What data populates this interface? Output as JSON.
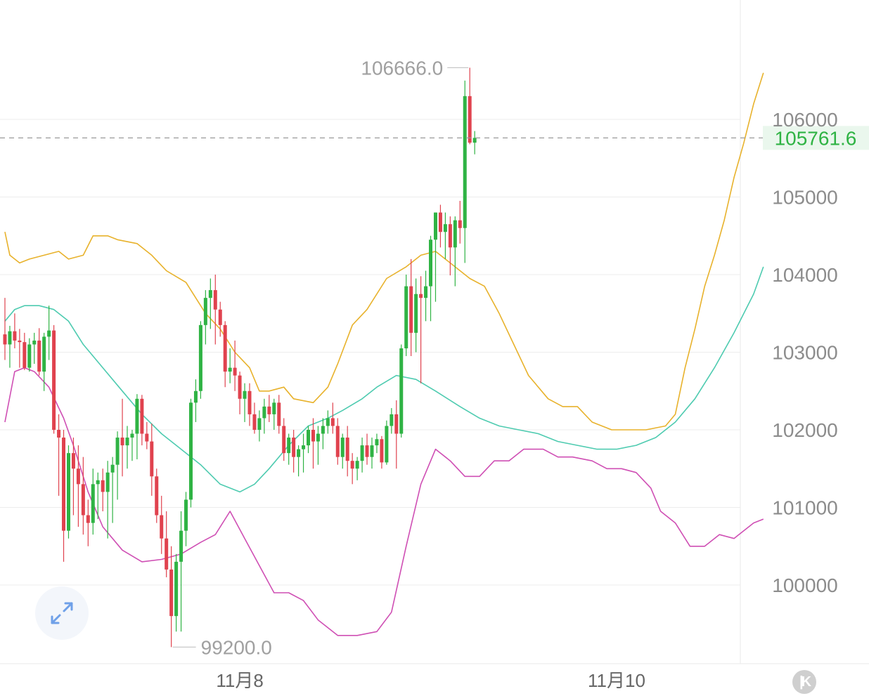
{
  "chart_data": {
    "type": "candlestick",
    "y_ticks": [
      "106000",
      "105000",
      "104000",
      "103000",
      "102000",
      "101000",
      "100000"
    ],
    "x_ticks": [
      {
        "label": "11月8",
        "index": 48
      },
      {
        "label": "11月10",
        "index": 125
      }
    ],
    "ylim": [
      98700,
      107500
    ],
    "current_price": "105761.6",
    "high_label": "106666.0",
    "low_label": "99200.0",
    "colors": {
      "up": "#2fb344",
      "down": "#e0424e",
      "upper_band": "#e8b22c",
      "middle_band": "#4ecbb0",
      "lower_band": "#cf4fb4",
      "grid": "#ececec",
      "price_line": "#999999"
    },
    "candles": [
      [
        103230,
        103700,
        102900,
        103100
      ],
      [
        103100,
        103340,
        102800,
        103270
      ],
      [
        103270,
        103500,
        103050,
        103150
      ],
      [
        103150,
        103300,
        102800,
        103130
      ],
      [
        103130,
        103250,
        102770,
        102800
      ],
      [
        102800,
        103180,
        102750,
        103100
      ],
      [
        103100,
        103250,
        102850,
        103150
      ],
      [
        103150,
        103310,
        102700,
        102750
      ],
      [
        102750,
        103250,
        102500,
        103200
      ],
      [
        103200,
        103600,
        102900,
        103280
      ],
      [
        103280,
        103350,
        101950,
        102000
      ],
      [
        102000,
        102200,
        101150,
        101900
      ],
      [
        101900,
        102000,
        100300,
        100700
      ],
      [
        100700,
        101800,
        100600,
        101700
      ],
      [
        101700,
        101900,
        100900,
        101500
      ],
      [
        101500,
        101800,
        100750,
        101300
      ],
      [
        101300,
        101650,
        100650,
        100900
      ],
      [
        100900,
        101100,
        100500,
        100800
      ],
      [
        100800,
        101500,
        100650,
        101300
      ],
      [
        101300,
        101450,
        100850,
        101350
      ],
      [
        101350,
        101500,
        100950,
        101200
      ],
      [
        101200,
        101600,
        100600,
        101450
      ],
      [
        101450,
        101650,
        100800,
        101550
      ],
      [
        101550,
        101980,
        101100,
        101900
      ],
      [
        101900,
        102400,
        101400,
        101800
      ],
      [
        101800,
        102050,
        101500,
        101900
      ],
      [
        101900,
        102000,
        101600,
        101950
      ],
      [
        101950,
        102460,
        101620,
        102400
      ],
      [
        102400,
        102450,
        101800,
        101950
      ],
      [
        101950,
        102100,
        101750,
        101850
      ],
      [
        101850,
        102080,
        101150,
        101400
      ],
      [
        101400,
        101500,
        100800,
        100900
      ],
      [
        100900,
        101150,
        100400,
        100600
      ],
      [
        100600,
        100950,
        100100,
        100200
      ],
      [
        100200,
        100500,
        99200,
        99600
      ],
      [
        99600,
        100400,
        99400,
        100300
      ],
      [
        100300,
        100950,
        99400,
        100700
      ],
      [
        100700,
        101200,
        100500,
        101100
      ],
      [
        101100,
        102400,
        101000,
        102350
      ],
      [
        102350,
        102650,
        102100,
        102500
      ],
      [
        102500,
        103400,
        102400,
        103350
      ],
      [
        103350,
        103800,
        103100,
        103700
      ],
      [
        103700,
        103950,
        103300,
        103800
      ],
      [
        103800,
        104000,
        103100,
        103550
      ],
      [
        103550,
        103650,
        103200,
        103350
      ],
      [
        103350,
        103400,
        102550,
        102750
      ],
      [
        102750,
        103050,
        102600,
        102800
      ],
      [
        102800,
        103150,
        102500,
        102700
      ],
      [
        102700,
        102750,
        102200,
        102400
      ],
      [
        102400,
        102600,
        102100,
        102500
      ],
      [
        102500,
        102600,
        102050,
        102200
      ],
      [
        102200,
        102350,
        101950,
        102000
      ],
      [
        102000,
        102250,
        101850,
        102150
      ],
      [
        102150,
        102400,
        101950,
        102300
      ],
      [
        102300,
        102450,
        102100,
        102200
      ],
      [
        102200,
        102400,
        102000,
        102350
      ],
      [
        102350,
        102450,
        101950,
        102050
      ],
      [
        102050,
        102150,
        101600,
        101700
      ],
      [
        101700,
        101950,
        101550,
        101900
      ],
      [
        101900,
        102000,
        101450,
        101650
      ],
      [
        101650,
        101800,
        101400,
        101750
      ],
      [
        101750,
        101950,
        101450,
        101800
      ],
      [
        101800,
        102050,
        101700,
        102000
      ],
      [
        102000,
        102150,
        101500,
        101850
      ],
      [
        101850,
        102050,
        101550,
        101950
      ],
      [
        101950,
        102150,
        101750,
        102050
      ],
      [
        102050,
        102250,
        101950,
        102150
      ],
      [
        102150,
        102350,
        101950,
        102050
      ],
      [
        102050,
        102150,
        101550,
        101650
      ],
      [
        101650,
        101950,
        101500,
        101900
      ],
      [
        101900,
        102050,
        101400,
        101600
      ],
      [
        101600,
        101700,
        101300,
        101500
      ],
      [
        101500,
        101650,
        101350,
        101600
      ],
      [
        101600,
        101900,
        101450,
        101800
      ],
      [
        101800,
        101950,
        101550,
        101650
      ],
      [
        101650,
        101900,
        101500,
        101800
      ],
      [
        101800,
        101950,
        101700,
        101880
      ],
      [
        101880,
        101920,
        101500,
        101580
      ],
      [
        101580,
        102120,
        101550,
        102050
      ],
      [
        102050,
        102280,
        101950,
        102200
      ],
      [
        102200,
        102380,
        101500,
        101950
      ],
      [
        101950,
        103100,
        101900,
        103050
      ],
      [
        103050,
        104000,
        102950,
        103850
      ],
      [
        103850,
        104200,
        102950,
        103250
      ],
      [
        103250,
        103950,
        103000,
        103750
      ],
      [
        103750,
        103980,
        102600,
        103700
      ],
      [
        103700,
        104050,
        103400,
        103850
      ],
      [
        103850,
        104500,
        103400,
        104450
      ],
      [
        104450,
        104800,
        103650,
        104800
      ],
      [
        104800,
        104900,
        104350,
        104550
      ],
      [
        104550,
        104800,
        104200,
        104650
      ],
      [
        104650,
        104750,
        103990,
        104350
      ],
      [
        104350,
        104750,
        103850,
        104700
      ],
      [
        104700,
        104950,
        104400,
        104600
      ],
      [
        104600,
        106500,
        104150,
        106300
      ],
      [
        106300,
        106666,
        105680,
        105700
      ],
      [
        105700,
        105850,
        105550,
        105761.6
      ]
    ],
    "upper_band": [
      [
        0,
        104550
      ],
      [
        1,
        104250
      ],
      [
        3,
        104150
      ],
      [
        5,
        104200
      ],
      [
        8,
        104250
      ],
      [
        11,
        104300
      ],
      [
        13,
        104200
      ],
      [
        16,
        104250
      ],
      [
        18,
        104500
      ],
      [
        21,
        104500
      ],
      [
        23,
        104450
      ],
      [
        27,
        104400
      ],
      [
        30,
        104250
      ],
      [
        33,
        104050
      ],
      [
        37,
        103900
      ],
      [
        41,
        103500
      ],
      [
        44,
        103300
      ],
      [
        47,
        103000
      ],
      [
        50,
        102800
      ],
      [
        52,
        102500
      ],
      [
        54,
        102500
      ],
      [
        57,
        102550
      ],
      [
        59,
        102400
      ],
      [
        63,
        102350
      ],
      [
        66,
        102550
      ],
      [
        68,
        102850
      ],
      [
        71,
        103350
      ],
      [
        74,
        103550
      ],
      [
        78,
        103950
      ],
      [
        82,
        104100
      ],
      [
        85,
        104250
      ],
      [
        88,
        104300
      ],
      [
        92,
        104100
      ],
      [
        95,
        103950
      ],
      [
        98,
        103850
      ],
      [
        101,
        103500
      ],
      [
        104,
        103100
      ],
      [
        107,
        102700
      ],
      [
        111,
        102400
      ],
      [
        114,
        102300
      ],
      [
        117,
        102300
      ],
      [
        120,
        102100
      ],
      [
        124,
        102000
      ],
      [
        128,
        102000
      ],
      [
        131,
        102000
      ],
      [
        135,
        102050
      ],
      [
        137,
        102200
      ],
      [
        139,
        102800
      ],
      [
        141,
        103300
      ],
      [
        143,
        103850
      ],
      [
        145,
        104250
      ],
      [
        147,
        104700
      ],
      [
        149,
        105250
      ],
      [
        151,
        105700
      ],
      [
        153,
        106200
      ],
      [
        155,
        106600
      ]
    ],
    "middle_band": [
      [
        0,
        103400
      ],
      [
        2,
        103550
      ],
      [
        4,
        103600
      ],
      [
        7,
        103600
      ],
      [
        10,
        103550
      ],
      [
        13,
        103400
      ],
      [
        16,
        103100
      ],
      [
        20,
        102800
      ],
      [
        24,
        102500
      ],
      [
        28,
        102200
      ],
      [
        32,
        101950
      ],
      [
        36,
        101750
      ],
      [
        40,
        101550
      ],
      [
        44,
        101300
      ],
      [
        48,
        101200
      ],
      [
        51,
        101300
      ],
      [
        54,
        101500
      ],
      [
        58,
        101800
      ],
      [
        62,
        102050
      ],
      [
        66,
        102150
      ],
      [
        69,
        102250
      ],
      [
        73,
        102400
      ],
      [
        76,
        102550
      ],
      [
        80,
        102700
      ],
      [
        84,
        102650
      ],
      [
        88,
        102500
      ],
      [
        93,
        102300
      ],
      [
        97,
        102150
      ],
      [
        101,
        102050
      ],
      [
        105,
        102000
      ],
      [
        109,
        101950
      ],
      [
        113,
        101850
      ],
      [
        117,
        101800
      ],
      [
        121,
        101750
      ],
      [
        125,
        101750
      ],
      [
        129,
        101800
      ],
      [
        133,
        101900
      ],
      [
        137,
        102100
      ],
      [
        141,
        102400
      ],
      [
        145,
        102800
      ],
      [
        149,
        103250
      ],
      [
        153,
        103750
      ],
      [
        155,
        104100
      ]
    ],
    "lower_band": [
      [
        0,
        102100
      ],
      [
        2,
        102750
      ],
      [
        4,
        102800
      ],
      [
        6,
        102750
      ],
      [
        9,
        102550
      ],
      [
        12,
        102150
      ],
      [
        14,
        101800
      ],
      [
        17,
        101200
      ],
      [
        20,
        100750
      ],
      [
        24,
        100450
      ],
      [
        28,
        100300
      ],
      [
        32,
        100330
      ],
      [
        36,
        100400
      ],
      [
        40,
        100550
      ],
      [
        43,
        100650
      ],
      [
        46,
        100950
      ],
      [
        49,
        100600
      ],
      [
        52,
        100250
      ],
      [
        55,
        99900
      ],
      [
        58,
        99900
      ],
      [
        61,
        99800
      ],
      [
        64,
        99550
      ],
      [
        68,
        99350
      ],
      [
        72,
        99350
      ],
      [
        76,
        99400
      ],
      [
        79,
        99650
      ],
      [
        82,
        100500
      ],
      [
        85,
        101300
      ],
      [
        88,
        101750
      ],
      [
        91,
        101600
      ],
      [
        94,
        101400
      ],
      [
        97,
        101400
      ],
      [
        100,
        101600
      ],
      [
        103,
        101600
      ],
      [
        106,
        101750
      ],
      [
        110,
        101750
      ],
      [
        113,
        101650
      ],
      [
        116,
        101650
      ],
      [
        120,
        101600
      ],
      [
        123,
        101500
      ],
      [
        126,
        101500
      ],
      [
        129,
        101450
      ],
      [
        132,
        101250
      ],
      [
        134,
        100950
      ],
      [
        137,
        100800
      ],
      [
        140,
        100500
      ],
      [
        143,
        100500
      ],
      [
        146,
        100650
      ],
      [
        149,
        100600
      ],
      [
        153,
        100800
      ],
      [
        155,
        100850
      ]
    ]
  },
  "icons": {
    "expand": "expand-arrows-icon",
    "scroll_end": "scroll-to-latest-icon"
  },
  "scroll_btn_label": "K"
}
